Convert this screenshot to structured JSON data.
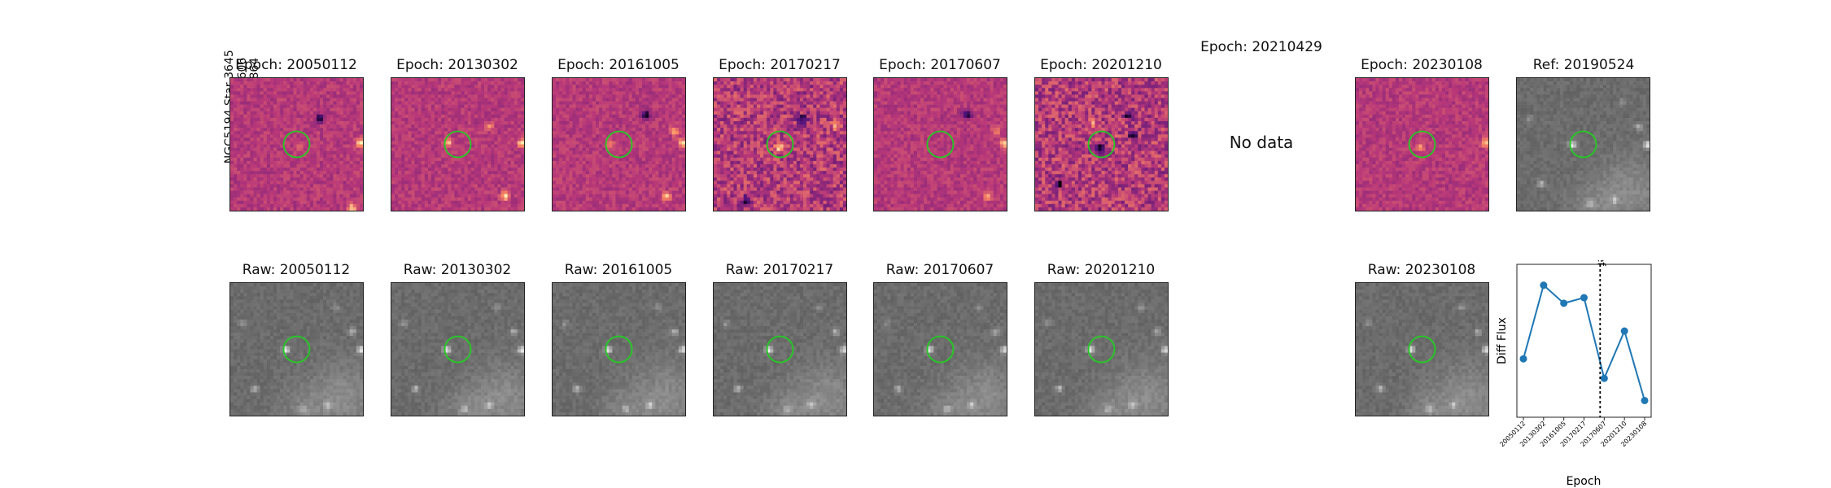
{
  "figure": {
    "star_label": "NGC5194 Star 3645",
    "ra_label": "RA: 202.4997606",
    "dec_label": "Dec: 47.1775864",
    "no_data_text": "No data"
  },
  "diff_titles": [
    "Epoch: 20050112",
    "Epoch: 20130302",
    "Epoch: 20161005",
    "Epoch: 20170217",
    "Epoch: 20170607",
    "Epoch: 20201210",
    "Epoch: 20210429",
    "Epoch: 20230108"
  ],
  "ref_title": "Ref: 20190524",
  "raw_titles": [
    "Raw: 20050112",
    "Raw: 20130302",
    "Raw: 20161005",
    "Raw: 20170217",
    "Raw: 20170607",
    "Raw: 20201210",
    "Raw: 20230108"
  ],
  "colors": {
    "marker_circle": "#22cc22",
    "series_line": "#1f77b4"
  },
  "chart_data": {
    "type": "line",
    "title": "",
    "xlabel": "Epoch",
    "ylabel": "Diff Flux",
    "categories": [
      "20050112",
      "20130302",
      "20161005",
      "20170217",
      "20170607",
      "20201210",
      "20230108"
    ],
    "values": [
      0.42,
      0.95,
      0.82,
      0.86,
      0.28,
      0.62,
      0.12
    ],
    "ylim": [
      0,
      1.1
    ],
    "reference_line": {
      "label": "ref",
      "after_category": "20170607",
      "position_fraction": 0.62
    },
    "grid": false,
    "y_ticks_shown": false
  }
}
